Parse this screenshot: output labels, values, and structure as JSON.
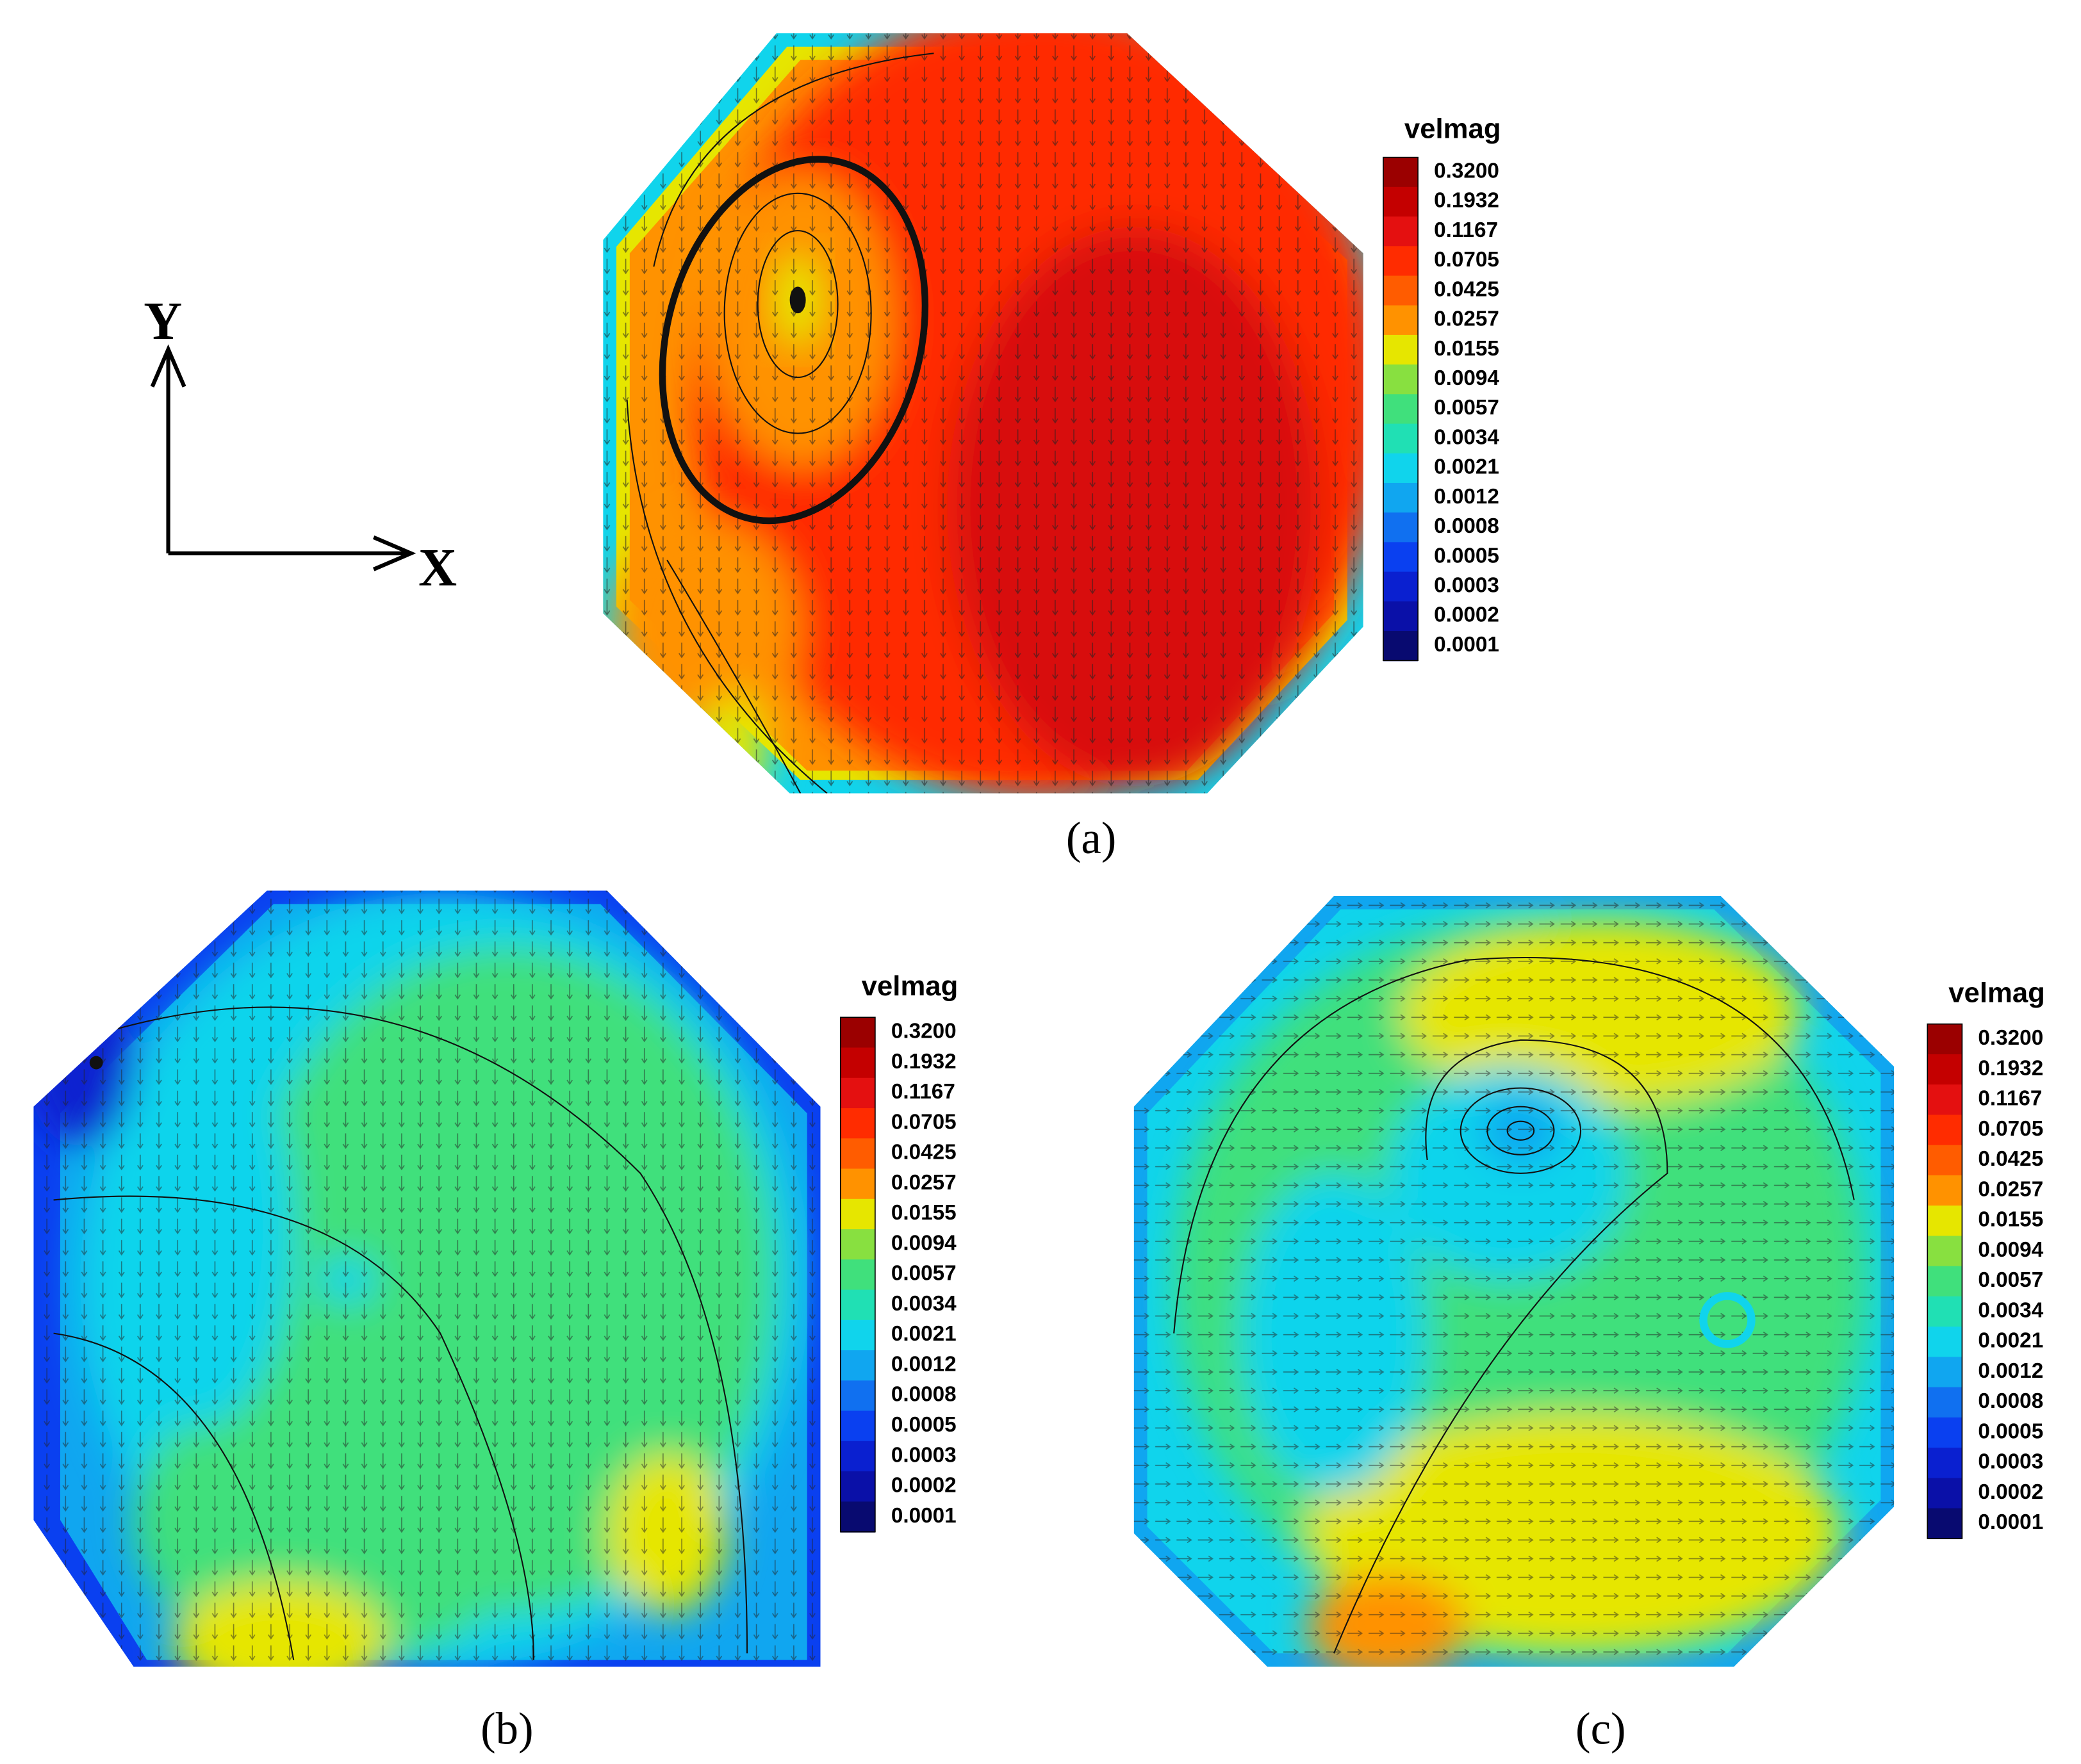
{
  "figure": {
    "axes": {
      "x": "X",
      "y": "Y"
    },
    "legend": {
      "title": "velmag",
      "levels": [
        "0.3200",
        "0.1932",
        "0.1167",
        "0.0705",
        "0.0425",
        "0.0257",
        "0.0155",
        "0.0094",
        "0.0057",
        "0.0034",
        "0.0021",
        "0.0012",
        "0.0008",
        "0.0005",
        "0.0003",
        "0.0002",
        "0.0001"
      ],
      "colors": [
        "#9b0000",
        "#c40000",
        "#e41010",
        "#ff2c00",
        "#ff5c00",
        "#ff9200",
        "#e6e600",
        "#88e040",
        "#40e07c",
        "#20e0b4",
        "#10d4ec",
        "#10a6f0",
        "#1070f0",
        "#0a40f0",
        "#0a20d0",
        "#0a10a8",
        "#080a70"
      ]
    },
    "panels": [
      {
        "label": "(a)"
      },
      {
        "label": "(b)"
      },
      {
        "label": "(c)"
      }
    ]
  }
}
